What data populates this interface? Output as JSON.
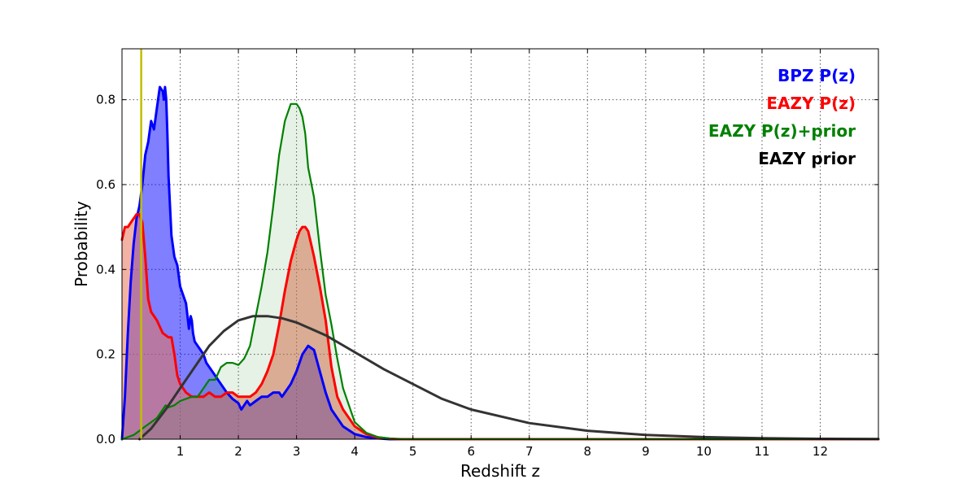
{
  "chart_data": {
    "type": "area",
    "xlabel": "Redshift z",
    "ylabel": "Probability",
    "xlim": [
      0,
      13
    ],
    "ylim": [
      0,
      0.92
    ],
    "x_ticks": [
      1,
      2,
      3,
      4,
      5,
      6,
      7,
      8,
      9,
      10,
      11,
      12
    ],
    "x_tick_labels": [
      "1",
      "2",
      "3",
      "4",
      "5",
      "6",
      "7",
      "8",
      "9",
      "10",
      "11",
      "12"
    ],
    "y_ticks": [
      0.0,
      0.2,
      0.4,
      0.6,
      0.8
    ],
    "y_tick_labels": [
      "0.0",
      "0.2",
      "0.4",
      "0.6",
      "0.8"
    ],
    "grid": true,
    "legend_position": "top-right",
    "vertical_line": {
      "x": 0.33,
      "color": "#bfbf00"
    },
    "series": [
      {
        "name": "BPZ P(z)",
        "color": "#0000ff",
        "fill": "#0000ff",
        "fill_opacity": 0.5,
        "x": [
          0.0,
          0.05,
          0.1,
          0.15,
          0.2,
          0.25,
          0.3,
          0.35,
          0.4,
          0.45,
          0.5,
          0.55,
          0.6,
          0.65,
          0.7,
          0.72,
          0.74,
          0.76,
          0.78,
          0.8,
          0.85,
          0.9,
          0.95,
          1.0,
          1.05,
          1.1,
          1.15,
          1.18,
          1.2,
          1.22,
          1.25,
          1.3,
          1.35,
          1.4,
          1.45,
          1.5,
          1.6,
          1.7,
          1.8,
          1.9,
          2.0,
          2.05,
          2.1,
          2.15,
          2.2,
          2.3,
          2.4,
          2.5,
          2.6,
          2.7,
          2.75,
          2.8,
          2.9,
          3.0,
          3.1,
          3.2,
          3.3,
          3.4,
          3.5,
          3.6,
          3.8,
          4.0,
          4.2,
          4.4,
          4.6,
          4.8,
          5.0,
          13.0
        ],
        "y": [
          0.0,
          0.1,
          0.25,
          0.37,
          0.46,
          0.52,
          0.55,
          0.6,
          0.67,
          0.7,
          0.75,
          0.73,
          0.78,
          0.83,
          0.82,
          0.8,
          0.83,
          0.8,
          0.72,
          0.62,
          0.48,
          0.43,
          0.41,
          0.36,
          0.34,
          0.32,
          0.26,
          0.29,
          0.28,
          0.25,
          0.23,
          0.22,
          0.21,
          0.2,
          0.18,
          0.17,
          0.15,
          0.13,
          0.11,
          0.095,
          0.085,
          0.07,
          0.08,
          0.09,
          0.08,
          0.09,
          0.1,
          0.1,
          0.11,
          0.11,
          0.1,
          0.11,
          0.13,
          0.16,
          0.2,
          0.22,
          0.21,
          0.16,
          0.11,
          0.07,
          0.03,
          0.012,
          0.005,
          0.002,
          0.0,
          0.0,
          0.0,
          0.0
        ]
      },
      {
        "name": "EAZY P(z)",
        "color": "#ff0000",
        "fill": "#e8735a",
        "fill_opacity": 0.55,
        "x": [
          0.0,
          0.05,
          0.1,
          0.15,
          0.2,
          0.25,
          0.3,
          0.35,
          0.4,
          0.45,
          0.5,
          0.6,
          0.7,
          0.8,
          0.85,
          0.9,
          0.95,
          1.0,
          1.1,
          1.2,
          1.3,
          1.4,
          1.5,
          1.6,
          1.7,
          1.8,
          1.9,
          2.0,
          2.1,
          2.2,
          2.3,
          2.4,
          2.5,
          2.6,
          2.7,
          2.8,
          2.9,
          3.0,
          3.05,
          3.1,
          3.15,
          3.2,
          3.3,
          3.4,
          3.5,
          3.6,
          3.7,
          3.8,
          4.0,
          4.2,
          4.4,
          4.6,
          4.8,
          5.0,
          13.0
        ],
        "y": [
          0.47,
          0.5,
          0.5,
          0.51,
          0.52,
          0.53,
          0.53,
          0.51,
          0.43,
          0.33,
          0.3,
          0.28,
          0.25,
          0.24,
          0.24,
          0.2,
          0.15,
          0.13,
          0.11,
          0.1,
          0.1,
          0.1,
          0.11,
          0.1,
          0.1,
          0.11,
          0.11,
          0.1,
          0.1,
          0.1,
          0.11,
          0.13,
          0.16,
          0.2,
          0.27,
          0.35,
          0.42,
          0.47,
          0.49,
          0.5,
          0.5,
          0.49,
          0.43,
          0.36,
          0.28,
          0.17,
          0.1,
          0.07,
          0.03,
          0.012,
          0.004,
          0.001,
          0.0,
          0.0,
          0.0
        ]
      },
      {
        "name": "EAZY P(z)+prior",
        "color": "#008000",
        "fill": "#008000",
        "fill_opacity": 0.1,
        "x": [
          0.0,
          0.1,
          0.2,
          0.3,
          0.4,
          0.5,
          0.6,
          0.7,
          0.75,
          0.8,
          0.9,
          1.0,
          1.1,
          1.2,
          1.3,
          1.4,
          1.5,
          1.6,
          1.7,
          1.8,
          1.9,
          2.0,
          2.1,
          2.2,
          2.3,
          2.4,
          2.5,
          2.6,
          2.7,
          2.8,
          2.9,
          3.0,
          3.05,
          3.1,
          3.15,
          3.2,
          3.3,
          3.4,
          3.5,
          3.6,
          3.7,
          3.8,
          3.9,
          4.0,
          4.2,
          4.4,
          4.6,
          4.8,
          5.0,
          13.0
        ],
        "y": [
          0.0,
          0.005,
          0.01,
          0.02,
          0.03,
          0.04,
          0.05,
          0.07,
          0.08,
          0.075,
          0.08,
          0.09,
          0.095,
          0.1,
          0.1,
          0.12,
          0.14,
          0.14,
          0.17,
          0.18,
          0.18,
          0.175,
          0.19,
          0.22,
          0.29,
          0.36,
          0.44,
          0.55,
          0.67,
          0.75,
          0.79,
          0.79,
          0.78,
          0.76,
          0.72,
          0.64,
          0.57,
          0.45,
          0.34,
          0.27,
          0.19,
          0.12,
          0.08,
          0.04,
          0.015,
          0.005,
          0.002,
          0.0,
          0.0,
          0.0
        ]
      },
      {
        "name": "EAZY prior",
        "color": "#333333",
        "fill": "none",
        "fill_opacity": 0,
        "x": [
          0.3,
          0.5,
          0.75,
          1.0,
          1.25,
          1.5,
          1.75,
          2.0,
          2.25,
          2.5,
          2.75,
          3.0,
          3.5,
          4.0,
          4.5,
          5.0,
          5.5,
          6.0,
          7.0,
          8.0,
          9.0,
          10.0,
          11.0,
          12.0,
          13.0
        ],
        "y": [
          0.0,
          0.025,
          0.07,
          0.12,
          0.17,
          0.22,
          0.255,
          0.28,
          0.29,
          0.29,
          0.285,
          0.275,
          0.245,
          0.205,
          0.165,
          0.13,
          0.095,
          0.07,
          0.038,
          0.02,
          0.01,
          0.005,
          0.0025,
          0.001,
          0.0005
        ]
      }
    ],
    "legend": [
      {
        "label": "BPZ P(z)",
        "color": "#0000ff"
      },
      {
        "label": "EAZY P(z)",
        "color": "#ff0000"
      },
      {
        "label": "EAZY P(z)+prior",
        "color": "#008000"
      },
      {
        "label": "EAZY prior",
        "color": "#000000"
      }
    ]
  }
}
